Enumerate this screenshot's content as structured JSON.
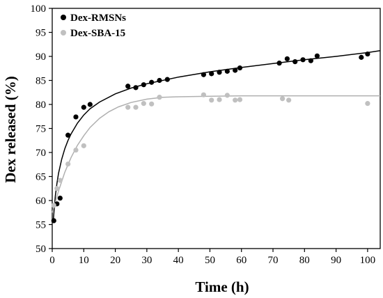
{
  "chart_data": {
    "type": "scatter",
    "xlabel": "Time (h)",
    "ylabel": "Dex released (%)",
    "xlim": [
      0,
      104
    ],
    "ylim": [
      50,
      100
    ],
    "x_ticks": [
      0,
      10,
      20,
      30,
      40,
      50,
      60,
      70,
      80,
      90,
      100
    ],
    "y_ticks": [
      50,
      55,
      60,
      65,
      70,
      75,
      80,
      85,
      90,
      95,
      100
    ],
    "grid": false,
    "legend_position": "top-left",
    "series": [
      {
        "name": "Dex-RMSNs",
        "color": "#000000",
        "fit": "logarithmic",
        "points": [
          [
            0.5,
            55.8
          ],
          [
            1.5,
            59.3
          ],
          [
            2.5,
            60.5
          ],
          [
            5,
            73.6
          ],
          [
            7.5,
            77.4
          ],
          [
            10,
            79.4
          ],
          [
            12,
            80.0
          ],
          [
            24,
            83.8
          ],
          [
            26.5,
            83.5
          ],
          [
            29,
            84.1
          ],
          [
            31.5,
            84.6
          ],
          [
            34,
            85.0
          ],
          [
            36.5,
            85.2
          ],
          [
            48,
            86.2
          ],
          [
            50.5,
            86.4
          ],
          [
            53,
            86.7
          ],
          [
            55.5,
            86.9
          ],
          [
            58,
            87.1
          ],
          [
            59.5,
            87.6
          ],
          [
            72,
            88.6
          ],
          [
            74.5,
            89.5
          ],
          [
            77,
            88.9
          ],
          [
            79.5,
            89.3
          ],
          [
            82,
            89.1
          ],
          [
            84,
            90.1
          ],
          [
            98,
            89.8
          ],
          [
            100,
            90.5
          ]
        ],
        "fit_curve": [
          [
            0.3,
            55.5
          ],
          [
            0.6,
            58.0
          ],
          [
            1,
            61.0
          ],
          [
            1.5,
            63.6
          ],
          [
            2,
            65.7
          ],
          [
            3,
            68.6
          ],
          [
            4,
            70.8
          ],
          [
            5,
            72.5
          ],
          [
            6,
            73.9
          ],
          [
            8,
            76.1
          ],
          [
            10,
            77.8
          ],
          [
            12,
            79.1
          ],
          [
            15,
            80.5
          ],
          [
            20,
            82.2
          ],
          [
            25,
            83.4
          ],
          [
            30,
            84.3
          ],
          [
            40,
            85.7
          ],
          [
            50,
            86.8
          ],
          [
            60,
            87.7
          ],
          [
            70,
            88.5
          ],
          [
            80,
            89.3
          ],
          [
            90,
            90.0
          ],
          [
            100,
            90.8
          ],
          [
            104,
            91.2
          ]
        ]
      },
      {
        "name": "Dex-SBA-15",
        "color": "#c0c0c0",
        "fit": "exponential",
        "points": [
          [
            0.5,
            59.0
          ],
          [
            1.5,
            62.5
          ],
          [
            2.5,
            64.2
          ],
          [
            5,
            67.6
          ],
          [
            7.5,
            70.5
          ],
          [
            10,
            71.4
          ],
          [
            24,
            79.4
          ],
          [
            26.5,
            79.4
          ],
          [
            29,
            80.2
          ],
          [
            31.5,
            80.1
          ],
          [
            34,
            81.5
          ],
          [
            48,
            82.0
          ],
          [
            50.5,
            80.9
          ],
          [
            53,
            81.0
          ],
          [
            55.5,
            81.9
          ],
          [
            58,
            80.9
          ],
          [
            59.5,
            81.0
          ],
          [
            73,
            81.2
          ],
          [
            75,
            80.9
          ],
          [
            100,
            80.2
          ]
        ],
        "fit_curve": [
          [
            0,
            57.5
          ],
          [
            2,
            62.0
          ],
          [
            4,
            65.9
          ],
          [
            6,
            69.0
          ],
          [
            8,
            71.5
          ],
          [
            10,
            73.5
          ],
          [
            12,
            75.2
          ],
          [
            15,
            77.1
          ],
          [
            18,
            78.5
          ],
          [
            21,
            79.5
          ],
          [
            25,
            80.4
          ],
          [
            30,
            81.1
          ],
          [
            35,
            81.5
          ],
          [
            40,
            81.6
          ],
          [
            50,
            81.7
          ],
          [
            60,
            81.8
          ],
          [
            70,
            81.8
          ],
          [
            80,
            81.8
          ],
          [
            90,
            81.8
          ],
          [
            104,
            81.8
          ]
        ]
      }
    ]
  }
}
